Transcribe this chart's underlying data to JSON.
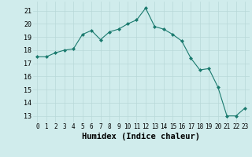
{
  "x": [
    0,
    1,
    2,
    3,
    4,
    5,
    6,
    7,
    8,
    9,
    10,
    11,
    12,
    13,
    14,
    15,
    16,
    17,
    18,
    19,
    20,
    21,
    22,
    23
  ],
  "y": [
    17.5,
    17.5,
    17.8,
    18.0,
    18.1,
    19.2,
    19.5,
    18.8,
    19.4,
    19.6,
    20.0,
    20.3,
    21.2,
    19.8,
    19.6,
    19.2,
    18.7,
    17.4,
    16.5,
    16.6,
    15.2,
    13.0,
    13.0,
    13.6
  ],
  "line_color": "#1a7a6e",
  "marker": "D",
  "marker_size": 2.0,
  "bg_color": "#d0ecec",
  "grid_color": "#b8d8d8",
  "xlabel": "Humidex (Indice chaleur)",
  "xlabel_fontsize": 7.5,
  "ylabel_ticks": [
    13,
    14,
    15,
    16,
    17,
    18,
    19,
    20,
    21
  ],
  "xlim": [
    -0.5,
    23.5
  ],
  "ylim": [
    12.5,
    21.7
  ],
  "xticks": [
    0,
    1,
    2,
    3,
    4,
    5,
    6,
    7,
    8,
    9,
    10,
    11,
    12,
    13,
    14,
    15,
    16,
    17,
    18,
    19,
    20,
    21,
    22,
    23
  ],
  "tick_fontsize": 5.5,
  "ytick_fontsize": 6.0
}
